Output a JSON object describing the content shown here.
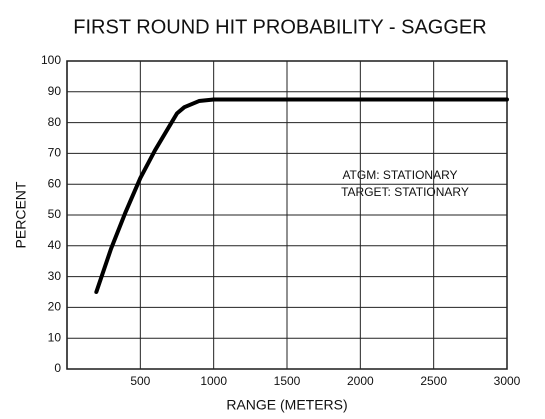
{
  "chart_data": {
    "type": "line",
    "title": "FIRST ROUND HIT PROBABILITY - SAGGER",
    "xlabel": "RANGE (METERS)",
    "ylabel": "PERCENT",
    "annotations": [
      "ATGM: STATIONARY",
      "TARGET: STATIONARY"
    ],
    "x": [
      200,
      300,
      400,
      500,
      600,
      700,
      750,
      800,
      900,
      1000,
      1500,
      2000,
      2500,
      3000
    ],
    "series": [
      {
        "name": "Hit probability",
        "color": "#000000",
        "values": [
          25,
          39,
          51,
          62,
          71,
          79,
          83,
          85,
          87,
          87.5,
          87.5,
          87.5,
          87.5,
          87.5
        ]
      }
    ],
    "xlim": [
      0,
      3000
    ],
    "xticks": [
      500,
      1000,
      1500,
      2000,
      2500,
      3000
    ],
    "ylim": [
      0,
      100
    ],
    "yticks": [
      0,
      10,
      20,
      30,
      40,
      50,
      60,
      70,
      80,
      90,
      100
    ],
    "grid": true
  }
}
